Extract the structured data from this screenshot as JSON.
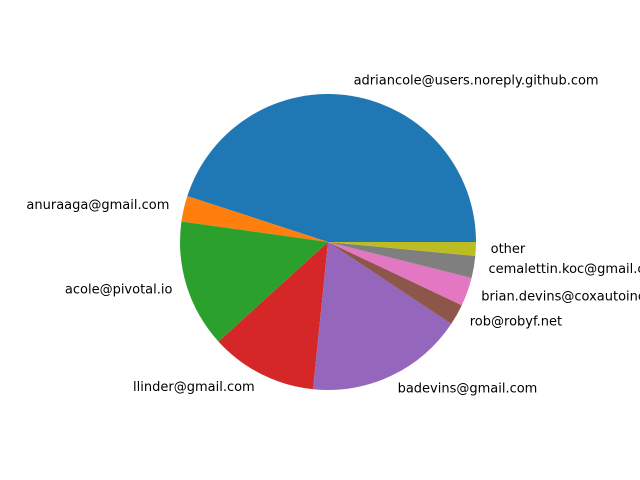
{
  "chart_data": {
    "type": "pie",
    "title": "",
    "labels": [
      "adriancole@users.noreply.github.com",
      "anuraaga@gmail.com",
      "acole@pivotal.io",
      "llinder@gmail.com",
      "badevins@gmail.com",
      "rob@robyf.net",
      "brian.devins@coxautoinc.com",
      "cemalettin.koc@gmail.com",
      "other"
    ],
    "values": [
      44.8,
      2.8,
      13.9,
      11.6,
      17.2,
      2.3,
      3.1,
      2.4,
      1.5
    ],
    "colors": [
      "#1f77b4",
      "#ff7f0e",
      "#2ca02c",
      "#d62728",
      "#9467bd",
      "#8c564b",
      "#e377c2",
      "#7f7f7f",
      "#bcbd22"
    ],
    "start_angle": 0,
    "direction": "counterclockwise",
    "legend": "none"
  }
}
